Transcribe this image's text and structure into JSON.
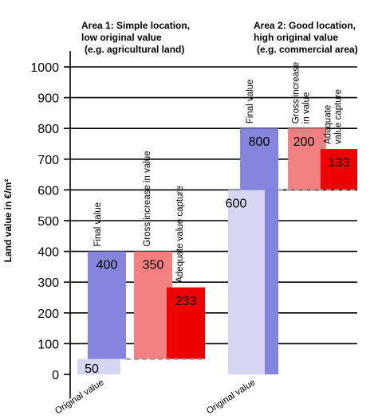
{
  "chart_data": {
    "type": "bar",
    "ylabel": "Land value in €/m²",
    "ylim": [
      0,
      1000
    ],
    "yticks": [
      0,
      100,
      200,
      300,
      400,
      500,
      600,
      700,
      800,
      900,
      1000
    ],
    "grid": "horizontal",
    "colors": {
      "original": "#d6d6f2",
      "final": "#8585dd",
      "gross": "#f28080",
      "capture": "#ee0000",
      "dashed": "#999999"
    },
    "groups": [
      {
        "title_lines": [
          "Area 1: Simple location,",
          "low original value",
          "(e.g. agricultural land)"
        ],
        "original_value": 50,
        "final_value": 400,
        "gross_increase": 350,
        "value_capture": 233,
        "labels": {
          "original": "Original value",
          "final": "Final value",
          "gross": [
            "Gross increase in value"
          ],
          "capture": [
            "Adequate value capture"
          ]
        }
      },
      {
        "title_lines": [
          "Area 2: Good location,",
          "high original value",
          "(e.g. commercial area)"
        ],
        "original_value": 600,
        "final_value": 800,
        "gross_increase": 200,
        "value_capture": 133,
        "labels": {
          "original": "Original value",
          "final": "Final value",
          "gross": [
            "Gross increase",
            "in value"
          ],
          "capture": [
            "Adequate",
            "value capture"
          ]
        }
      }
    ]
  }
}
